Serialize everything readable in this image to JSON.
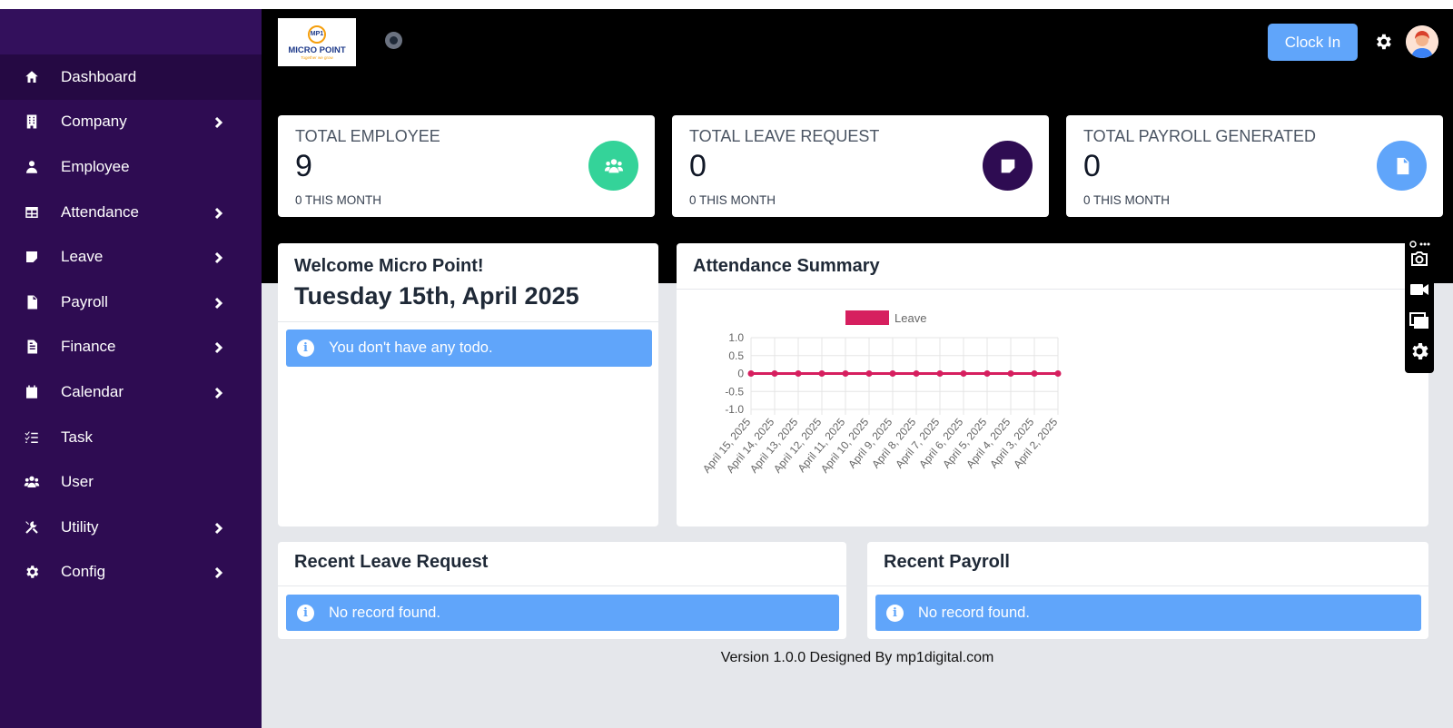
{
  "sidebar": {
    "items": [
      {
        "label": "Dashboard",
        "icon": "home-icon",
        "active": true
      },
      {
        "label": "Company",
        "icon": "building-icon",
        "chevron": true
      },
      {
        "label": "Employee",
        "icon": "user-icon"
      },
      {
        "label": "Attendance",
        "icon": "table-icon",
        "chevron": true
      },
      {
        "label": "Leave",
        "icon": "note-icon",
        "chevron": true
      },
      {
        "label": "Payroll",
        "icon": "file-pdf-icon",
        "chevron": true
      },
      {
        "label": "Finance",
        "icon": "file-invoice-icon",
        "chevron": true
      },
      {
        "label": "Calendar",
        "icon": "calendar-icon",
        "chevron": true
      },
      {
        "label": "Task",
        "icon": "list-check-icon"
      },
      {
        "label": "User",
        "icon": "users-icon"
      },
      {
        "label": "Utility",
        "icon": "tools-icon",
        "chevron": true
      },
      {
        "label": "Config",
        "icon": "gear-icon",
        "chevron": true
      }
    ]
  },
  "header": {
    "logo": {
      "mark": "MP1",
      "name": "MICRO POINT",
      "tagline": "Together we grow"
    },
    "clock_in_label": "Clock In",
    "settings_icon": "gear-icon",
    "avatar_icon": "avatar-icon"
  },
  "stats": [
    {
      "label": "TOTAL EMPLOYEE",
      "value": "9",
      "sub": "0 THIS MONTH",
      "icon": "users-icon",
      "color": "#34d399"
    },
    {
      "label": "TOTAL LEAVE REQUEST",
      "value": "0",
      "sub": "0 THIS MONTH",
      "icon": "note-icon",
      "color": "#2e0c52"
    },
    {
      "label": "TOTAL PAYROLL GENERATED",
      "value": "0",
      "sub": "0 THIS MONTH",
      "icon": "file-pdf-icon",
      "color": "#60a5fa"
    }
  ],
  "welcome": {
    "title": "Welcome Micro Point!",
    "date": "Tuesday 15th, April 2025",
    "todo_message": "You don't have any todo."
  },
  "attendance": {
    "title": "Attendance Summary"
  },
  "recent_leave": {
    "title": "Recent Leave Request",
    "message": "No record found."
  },
  "recent_payroll": {
    "title": "Recent Payroll",
    "message": "No record found."
  },
  "footer": {
    "text": "Version 1.0.0  Designed By mp1digital.com"
  },
  "colors": {
    "sidebar": "#2e0c52",
    "accent": "#60a5fa",
    "chart_line": "#d61f5f"
  },
  "chart_data": {
    "type": "line",
    "title": "",
    "xlabel": "",
    "ylabel": "",
    "x": [
      "April 15, 2025",
      "April 14, 2025",
      "April 13, 2025",
      "April 12, 2025",
      "April 11, 2025",
      "April 10, 2025",
      "April 9, 2025",
      "April 8, 2025",
      "April 7, 2025",
      "April 6, 2025",
      "April 5, 2025",
      "April 4, 2025",
      "April 3, 2025",
      "April 2, 2025"
    ],
    "series": [
      {
        "name": "Leave",
        "values": [
          0,
          0,
          0,
          0,
          0,
          0,
          0,
          0,
          0,
          0,
          0,
          0,
          0,
          0
        ],
        "color": "#d61f5f"
      }
    ],
    "yticks": [
      "1.0",
      "0.5",
      "0",
      "-0.5",
      "-1.0"
    ],
    "ylim": [
      -1,
      1
    ],
    "grid": true,
    "legend": "top"
  }
}
